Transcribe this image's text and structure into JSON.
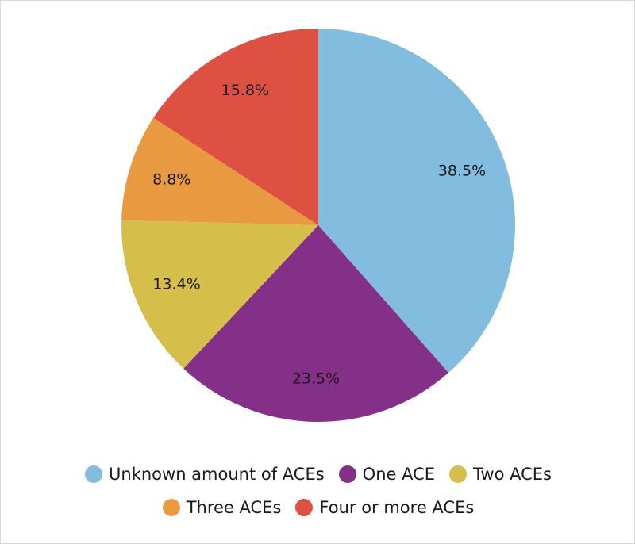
{
  "chart_data": {
    "type": "pie",
    "categories": [
      "Unknown amount of ACEs",
      "One ACE",
      "Two ACEs",
      "Three ACEs",
      "Four or more ACEs"
    ],
    "values": [
      38.5,
      23.5,
      13.4,
      8.8,
      15.8
    ],
    "labels": [
      "38.5%",
      "23.5%",
      "13.4%",
      "8.8%",
      "15.8%"
    ],
    "colors": [
      "#82bde0",
      "#843088",
      "#d5bf4a",
      "#e99a40",
      "#de5142"
    ],
    "direction": "clockwise from top",
    "legend_position": "bottom"
  }
}
